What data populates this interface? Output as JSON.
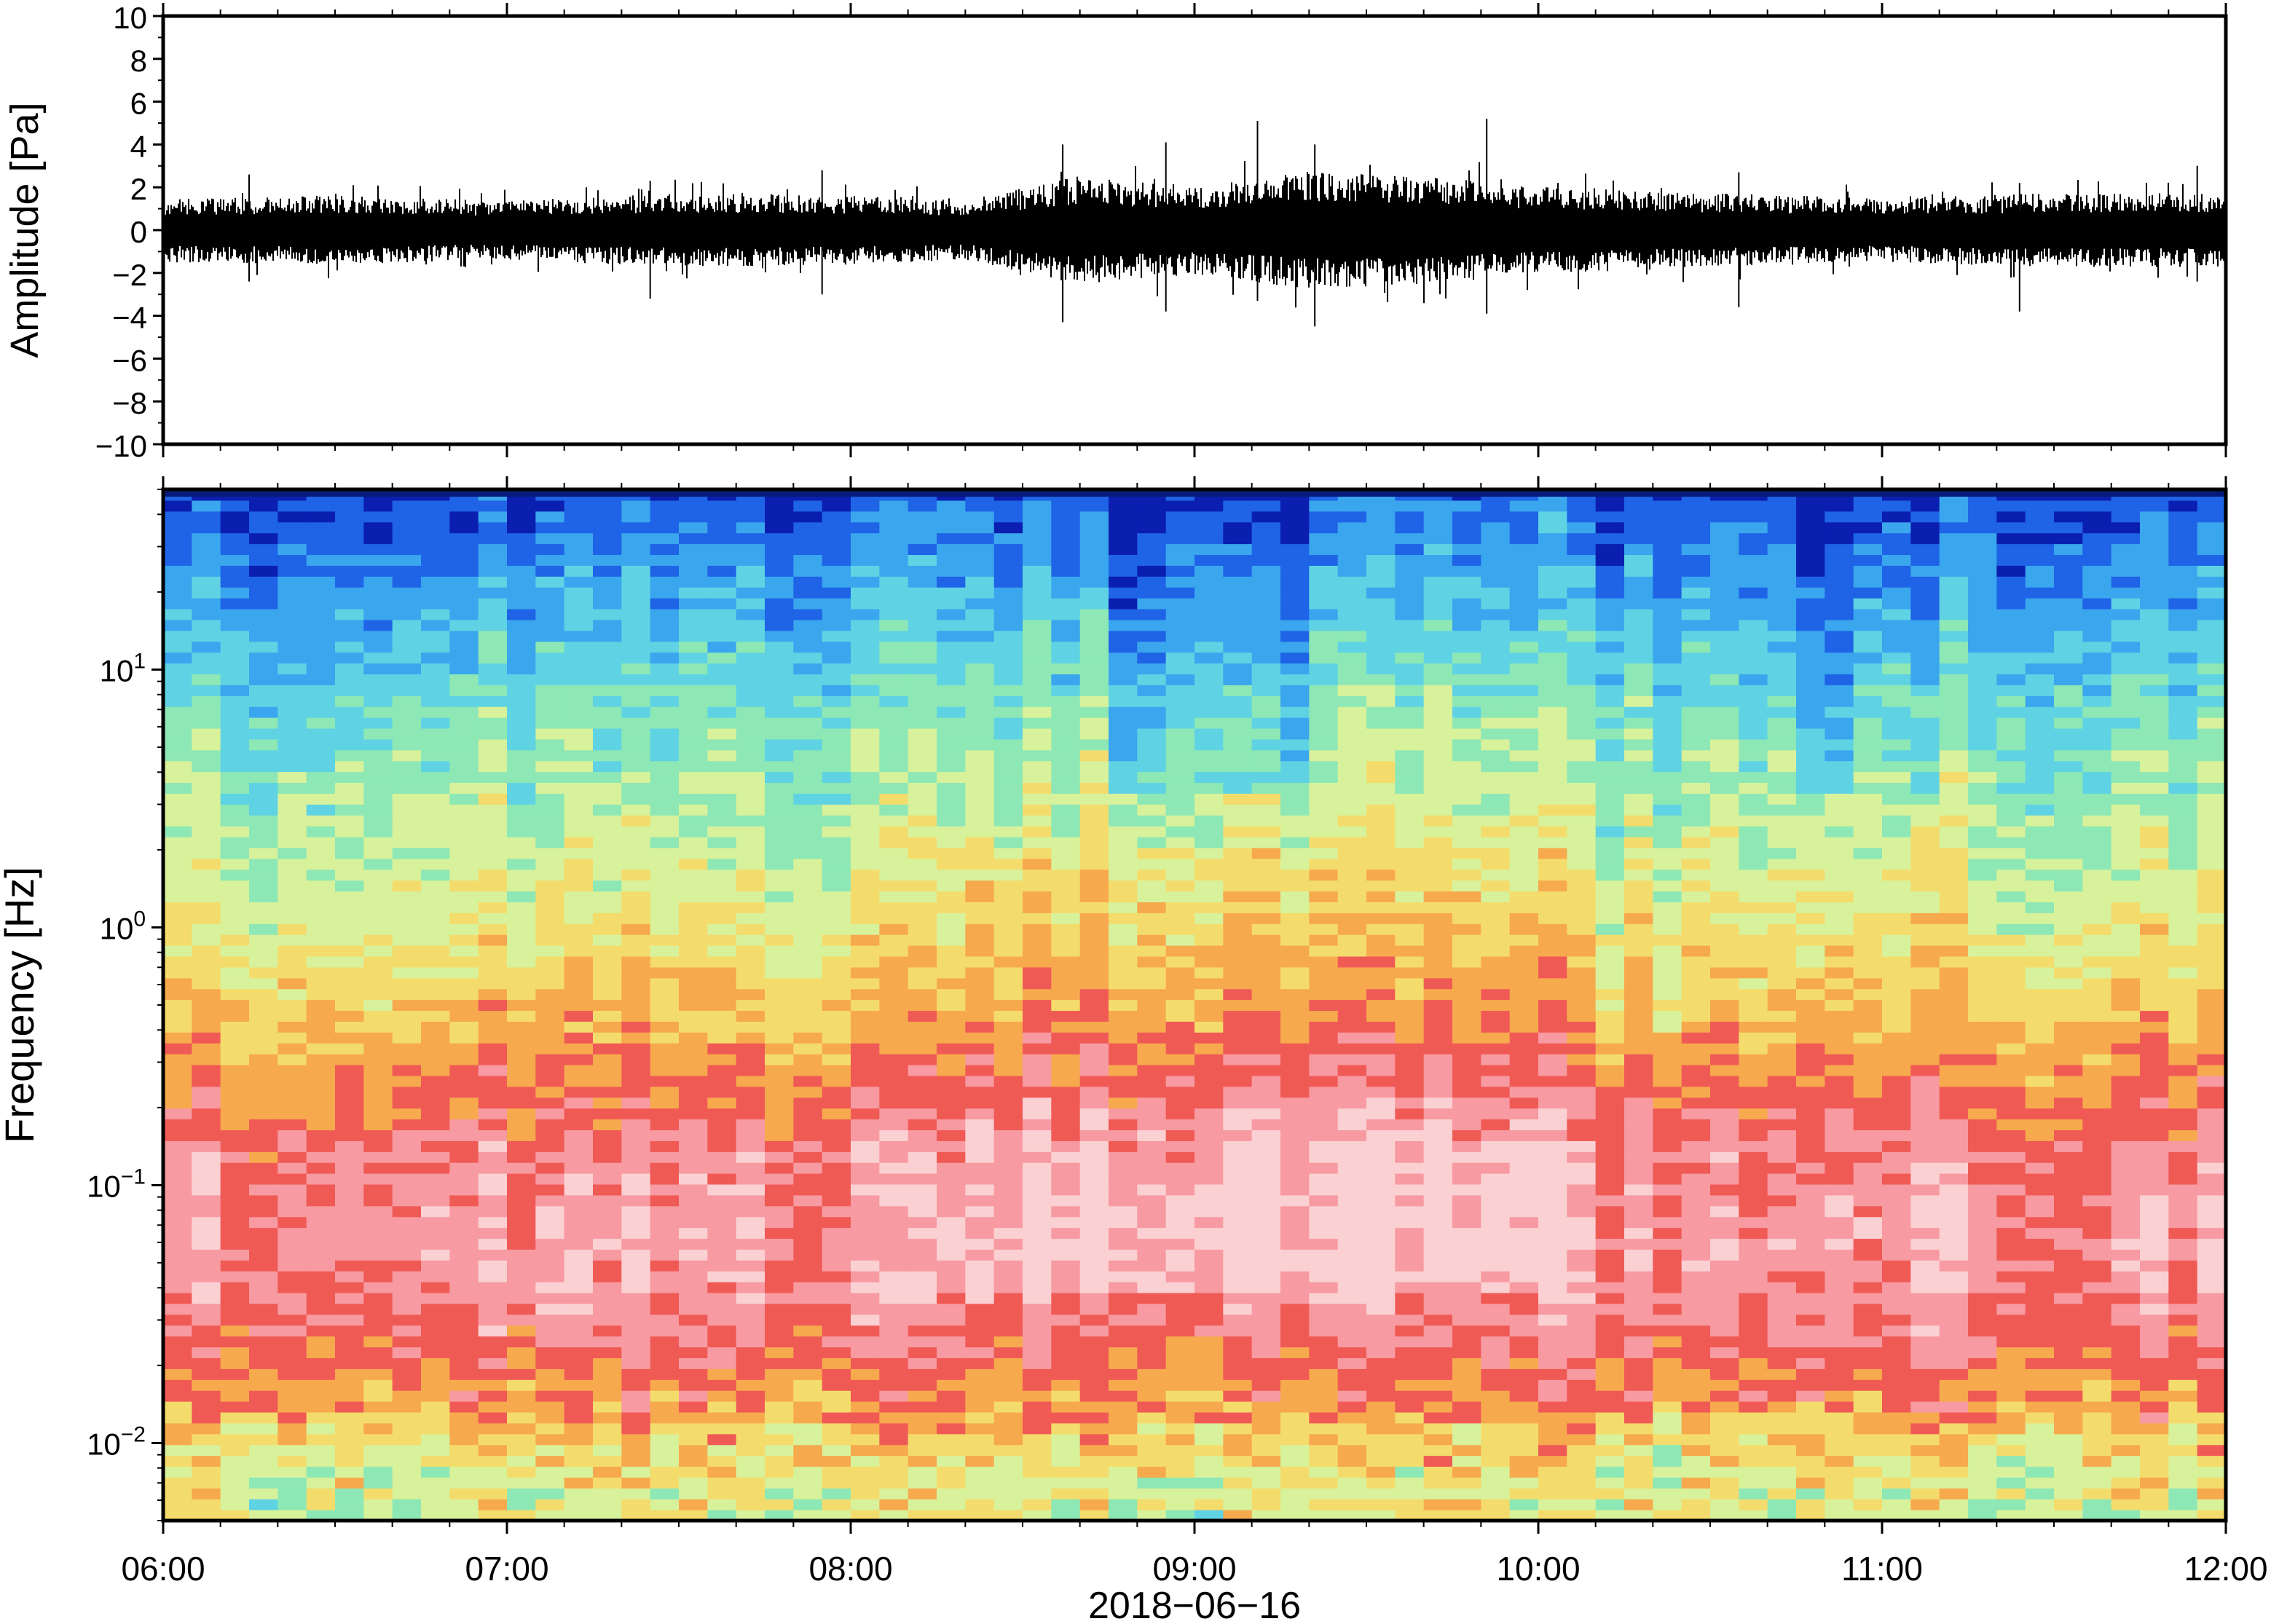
{
  "chart_data": [
    {
      "type": "line",
      "ylabel": "Amplitude [Pa]",
      "ylim": [
        -10,
        10
      ],
      "yticks": [
        "10",
        "8",
        "6",
        "4",
        "2",
        "0",
        "−2",
        "−4",
        "−6",
        "−8",
        "−10"
      ],
      "x_range": [
        "06:00",
        "12:00"
      ],
      "series_color": "#000000",
      "envelope": [
        {
          "t": "06:00",
          "amp": 1.3
        },
        {
          "t": "06:30",
          "amp": 1.4
        },
        {
          "t": "07:00",
          "amp": 1.2
        },
        {
          "t": "07:30",
          "amp": 1.5
        },
        {
          "t": "08:00",
          "amp": 1.4
        },
        {
          "t": "08:20",
          "amp": 1.2
        },
        {
          "t": "08:40",
          "amp": 2.2
        },
        {
          "t": "09:00",
          "amp": 1.8
        },
        {
          "t": "09:20",
          "amp": 2.4
        },
        {
          "t": "09:40",
          "amp": 2.2
        },
        {
          "t": "10:00",
          "amp": 1.8
        },
        {
          "t": "10:30",
          "amp": 1.5
        },
        {
          "t": "11:00",
          "amp": 1.3
        },
        {
          "t": "11:30",
          "amp": 1.5
        },
        {
          "t": "12:00",
          "amp": 1.5
        }
      ],
      "peaks": [
        {
          "t": "06:15",
          "max": 2.6,
          "min": -2.4
        },
        {
          "t": "07:25",
          "max": 2.3,
          "min": -3.2
        },
        {
          "t": "07:55",
          "max": 2.8,
          "min": -3.0
        },
        {
          "t": "08:37",
          "max": 4.0,
          "min": -4.3
        },
        {
          "t": "08:55",
          "max": 4.1,
          "min": -3.8
        },
        {
          "t": "09:11",
          "max": 5.1,
          "min": -3.3
        },
        {
          "t": "09:21",
          "max": 4.0,
          "min": -4.5
        },
        {
          "t": "09:51",
          "max": 5.2,
          "min": -3.9
        },
        {
          "t": "10:35",
          "max": 2.7,
          "min": -3.6
        },
        {
          "t": "11:24",
          "max": 2.2,
          "min": -3.8
        },
        {
          "t": "11:55",
          "max": 3.0,
          "min": -2.4
        }
      ]
    },
    {
      "type": "heatmap",
      "xlabel": "2018−06−16",
      "ylabel": "Frequency [Hz]",
      "x_categories": [
        "06:00",
        "07:00",
        "08:00",
        "09:00",
        "10:00",
        "11:00",
        "12:00"
      ],
      "y_scale": "log",
      "ylim": [
        0.005,
        50
      ],
      "y_tick_labels": [
        {
          "base": "10",
          "exp": "1",
          "value": 10
        },
        {
          "base": "10",
          "exp": "0",
          "value": 1
        },
        {
          "base": "10",
          "exp": "−1",
          "value": 0.1
        },
        {
          "base": "10",
          "exp": "−2",
          "value": 0.01
        }
      ],
      "colormap": [
        "#0a1fb0",
        "#1f63e6",
        "#3aa6ee",
        "#5fd3e3",
        "#8de8b5",
        "#d8f19b",
        "#f4dc6c",
        "#f7a94e",
        "#f05a55",
        "#f79aa1",
        "#fbd0d2"
      ],
      "time_windows": 72,
      "frequency_bins": 95,
      "profile_log10f_knots": [
        -2.3,
        -2.0,
        -1.75,
        -1.5,
        -1.2,
        -0.85,
        -0.6,
        -0.3,
        0.0,
        0.4,
        0.8,
        1.1,
        1.4,
        1.7
      ],
      "profile_level_knots": [
        4.5,
        5.6,
        7.6,
        8.7,
        9.1,
        8.6,
        7.5,
        6.4,
        5.5,
        4.6,
        3.7,
        2.7,
        1.6,
        0.6
      ],
      "event_window": [
        "08:20",
        "10:05"
      ],
      "quiet_column_times": [
        "08:50",
        "09:10",
        "09:15",
        "10:50",
        "11:07"
      ]
    }
  ]
}
